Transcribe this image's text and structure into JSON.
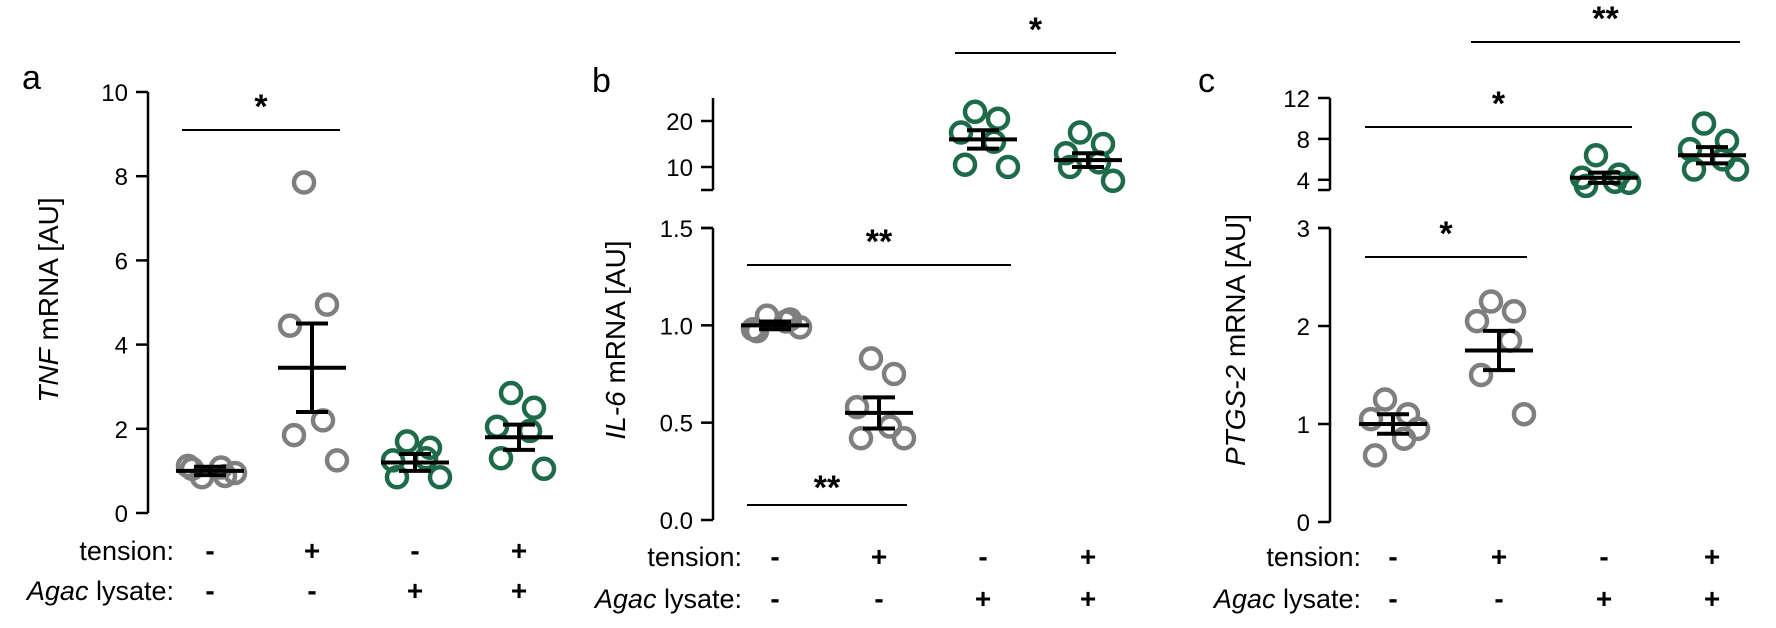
{
  "chart_data": [
    {
      "type": "scatter",
      "panel": "a",
      "ylabel_italic": "TNF",
      "ylabel_rest": " mRNA [AU]",
      "ylim": [
        0,
        10
      ],
      "yticks": [
        "0",
        "2",
        "4",
        "6",
        "8",
        "10"
      ],
      "groups": [
        {
          "tension": "-",
          "lysate": "-",
          "color": "#7f7f7f",
          "mean": 1.0,
          "sem": 0.1,
          "points": [
            0.85,
            0.88,
            1.12,
            1.08,
            1.05,
            0.95
          ]
        },
        {
          "tension": "+",
          "lysate": "-",
          "color": "#7f7f7f",
          "mean": 3.45,
          "sem": 1.05,
          "points": [
            7.85,
            4.95,
            4.45,
            2.2,
            1.85,
            1.25
          ]
        },
        {
          "tension": "-",
          "lysate": "+",
          "color": "#1e6b4a",
          "mean": 1.2,
          "sem": 0.2,
          "points": [
            1.7,
            1.55,
            1.25,
            1.3,
            0.85,
            0.85
          ]
        },
        {
          "tension": "+",
          "lysate": "+",
          "color": "#1e6b4a",
          "mean": 1.8,
          "sem": 0.3,
          "points": [
            2.85,
            2.5,
            2.05,
            1.95,
            1.3,
            1.05
          ]
        }
      ],
      "significance": [
        {
          "from": 0,
          "to": 1,
          "label": "*"
        }
      ],
      "row_labels": {
        "tension_italic": "",
        "tension_rest": "tension:",
        "lysate_italic": "Agac",
        "lysate_rest": " lysate:"
      }
    },
    {
      "type": "scatter",
      "panel": "b",
      "ylabel_italic": "IL-6",
      "ylabel_rest": " mRNA [AU]",
      "broken_axis": true,
      "ylim_lower": [
        0,
        1.5
      ],
      "yticks_lower": [
        "0.0",
        "0.5",
        "1.0",
        "1.5"
      ],
      "ylim_upper": [
        5,
        25
      ],
      "yticks_upper": [
        "10",
        "20"
      ],
      "groups": [
        {
          "tension": "-",
          "lysate": "-",
          "color": "#7f7f7f",
          "mean": 1.0,
          "sem": 0.02,
          "points": [
            1.05,
            1.03,
            0.98,
            1.02,
            0.97,
            0.99
          ]
        },
        {
          "tension": "+",
          "lysate": "-",
          "color": "#7f7f7f",
          "mean": 0.55,
          "sem": 0.08,
          "points": [
            0.83,
            0.75,
            0.58,
            0.48,
            0.42,
            0.42
          ]
        },
        {
          "tension": "-",
          "lysate": "+",
          "color": "#1e6b4a",
          "mean": 16.0,
          "sem": 2.0,
          "points": [
            22.0,
            20.5,
            17.5,
            15.5,
            10.5,
            10.0
          ]
        },
        {
          "tension": "+",
          "lysate": "+",
          "color": "#1e6b4a",
          "mean": 11.5,
          "sem": 1.5,
          "points": [
            17.5,
            15.0,
            13.0,
            11.0,
            10.0,
            7.0
          ]
        }
      ],
      "significance": [
        {
          "from": 2,
          "to": 3,
          "label": "*"
        },
        {
          "from": 0,
          "to": 2,
          "label": "**"
        },
        {
          "from": 0,
          "to": 1,
          "label": "**",
          "below": true
        }
      ],
      "row_labels": {
        "tension_italic": "",
        "tension_rest": "tension:",
        "lysate_italic": "Agac",
        "lysate_rest": " lysate:"
      }
    },
    {
      "type": "scatter",
      "panel": "c",
      "ylabel_italic": "PTGS-2",
      "ylabel_rest": " mRNA [AU]",
      "broken_axis": true,
      "ylim_lower": [
        0,
        3
      ],
      "yticks_lower": [
        "0",
        "1",
        "2",
        "3"
      ],
      "ylim_upper": [
        3,
        12
      ],
      "yticks_upper": [
        "4",
        "8",
        "12"
      ],
      "groups": [
        {
          "tension": "-",
          "lysate": "-",
          "color": "#7f7f7f",
          "mean": 1.0,
          "sem": 0.1,
          "points": [
            1.25,
            1.1,
            1.05,
            0.85,
            0.68,
            0.95
          ]
        },
        {
          "tension": "+",
          "lysate": "-",
          "color": "#7f7f7f",
          "mean": 1.75,
          "sem": 0.2,
          "points": [
            2.25,
            2.15,
            2.05,
            1.85,
            1.5,
            1.1
          ]
        },
        {
          "tension": "-",
          "lysate": "+",
          "color": "#1e6b4a",
          "mean": 4.2,
          "sem": 0.5,
          "points": [
            6.4,
            4.5,
            4.2,
            3.8,
            3.4,
            3.7
          ]
        },
        {
          "tension": "+",
          "lysate": "+",
          "color": "#1e6b4a",
          "mean": 6.4,
          "sem": 0.8,
          "points": [
            9.5,
            7.8,
            7.0,
            6.0,
            5.0,
            5.0
          ]
        }
      ],
      "significance": [
        {
          "from": 1,
          "to": 3,
          "label": "**"
        },
        {
          "from": 0,
          "to": 2,
          "label": "*"
        },
        {
          "from": 0,
          "to": 1,
          "label": "*"
        }
      ],
      "row_labels": {
        "tension_italic": "",
        "tension_rest": "tension:",
        "lysate_italic": "Agac",
        "lysate_rest": " lysate:"
      }
    }
  ]
}
